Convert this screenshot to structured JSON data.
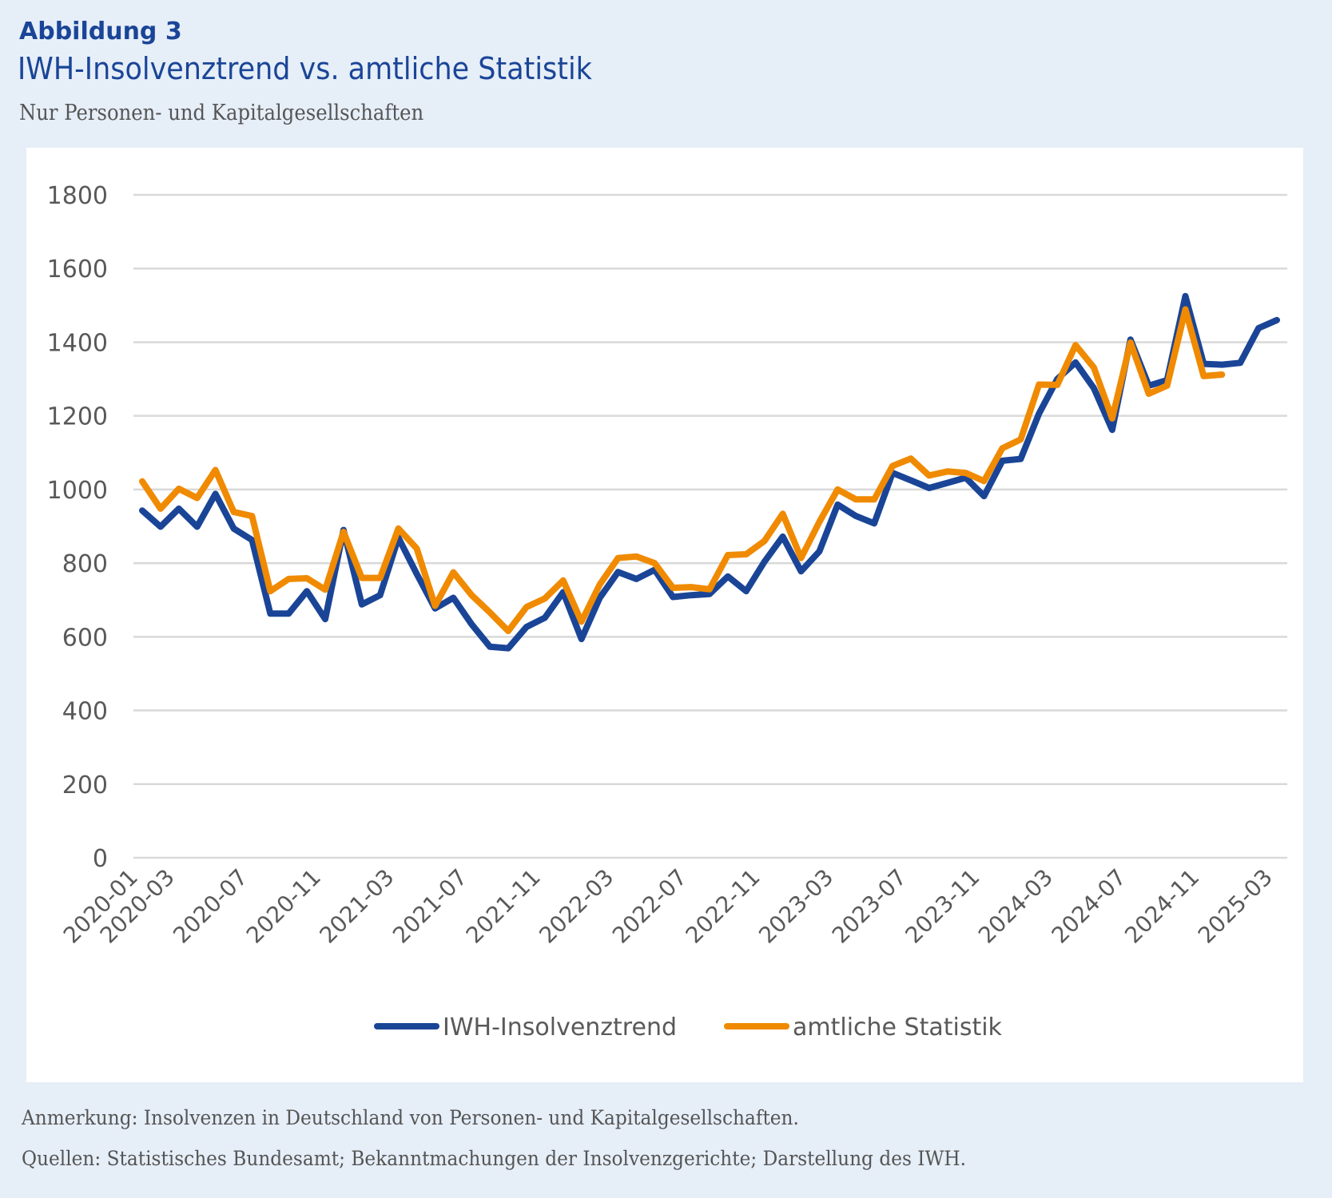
{
  "header": {
    "figure_label": "Abbildung 3",
    "title": "IWH-Insolvenztrend vs. amtliche Statistik",
    "subtitle": "Nur Personen- und Kapitalgesellschaften"
  },
  "footer": {
    "note": "Anmerkung: Insolvenzen in Deutschland von Personen- und Kapitalgesellschaften.",
    "sources": "Quellen: Statistisches Bundesamt; Bekanntmachungen der Insolvenzgerichte; Darstellung des IWH."
  },
  "colors": {
    "iwh": "#1a4597",
    "official": "#f08a00",
    "grid": "#d9d9d9",
    "text": "#595959"
  },
  "chart_data": {
    "type": "line",
    "title": "IWH-Insolvenztrend vs. amtliche Statistik",
    "subtitle": "Nur Personen- und Kapitalgesellschaften",
    "xlabel": "",
    "ylabel": "",
    "ylim": [
      0,
      1800
    ],
    "yticks": [
      0,
      200,
      400,
      600,
      800,
      1000,
      1200,
      1400,
      1600,
      1800
    ],
    "grid": true,
    "legend_position": "bottom",
    "x": [
      "2020-01",
      "2020-02",
      "2020-03",
      "2020-04",
      "2020-05",
      "2020-06",
      "2020-07",
      "2020-08",
      "2020-09",
      "2020-10",
      "2020-11",
      "2020-12",
      "2021-01",
      "2021-02",
      "2021-03",
      "2021-04",
      "2021-05",
      "2021-06",
      "2021-07",
      "2021-08",
      "2021-09",
      "2021-10",
      "2021-11",
      "2021-12",
      "2022-01",
      "2022-02",
      "2022-03",
      "2022-04",
      "2022-05",
      "2022-06",
      "2022-07",
      "2022-08",
      "2022-09",
      "2022-10",
      "2022-11",
      "2022-12",
      "2023-01",
      "2023-02",
      "2023-03",
      "2023-04",
      "2023-05",
      "2023-06",
      "2023-07",
      "2023-08",
      "2023-09",
      "2023-10",
      "2023-11",
      "2023-12",
      "2024-01",
      "2024-02",
      "2024-03",
      "2024-04",
      "2024-05",
      "2024-06",
      "2024-07",
      "2024-08",
      "2024-09",
      "2024-10",
      "2024-11",
      "2024-12",
      "2025-01",
      "2025-02",
      "2025-03"
    ],
    "xtick_labels": [
      "2020-01",
      "2020-03",
      "2020-07",
      "2020-11",
      "2021-03",
      "2021-07",
      "2021-11",
      "2022-03",
      "2022-07",
      "2022-11",
      "2023-03",
      "2023-07",
      "2023-11",
      "2024-03",
      "2024-07",
      "2024-11",
      "2025-03"
    ],
    "series": [
      {
        "name": "IWH-Insolvenztrend",
        "color": "#1a4597",
        "values": [
          943,
          899,
          948,
          899,
          988,
          894,
          863,
          663,
          663,
          724,
          648,
          890,
          688,
          713,
          869,
          771,
          677,
          706,
          634,
          573,
          569,
          627,
          652,
          721,
          594,
          706,
          776,
          757,
          782,
          708,
          713,
          716,
          764,
          724,
          804,
          872,
          778,
          832,
          959,
          928,
          908,
          1045,
          1025,
          1004,
          1018,
          1032,
          982,
          1078,
          1083,
          1206,
          1300,
          1345,
          1275,
          1162,
          1407,
          1282,
          1297,
          1525,
          1341,
          1339,
          1344,
          1438,
          1460
        ]
      },
      {
        "name": "amtliche Statistik",
        "color": "#f08a00",
        "values": [
          1022,
          948,
          1002,
          977,
          1053,
          939,
          928,
          724,
          757,
          759,
          728,
          885,
          760,
          760,
          894,
          840,
          684,
          775,
          713,
          666,
          616,
          681,
          704,
          753,
          641,
          742,
          814,
          818,
          800,
          733,
          735,
          729,
          822,
          824,
          860,
          934,
          814,
          912,
          1000,
          973,
          973,
          1064,
          1084,
          1038,
          1049,
          1045,
          1023,
          1112,
          1136,
          1285,
          1284,
          1392,
          1331,
          1193,
          1399,
          1260,
          1282,
          1489,
          1308,
          1312,
          null,
          null,
          null
        ]
      }
    ]
  }
}
